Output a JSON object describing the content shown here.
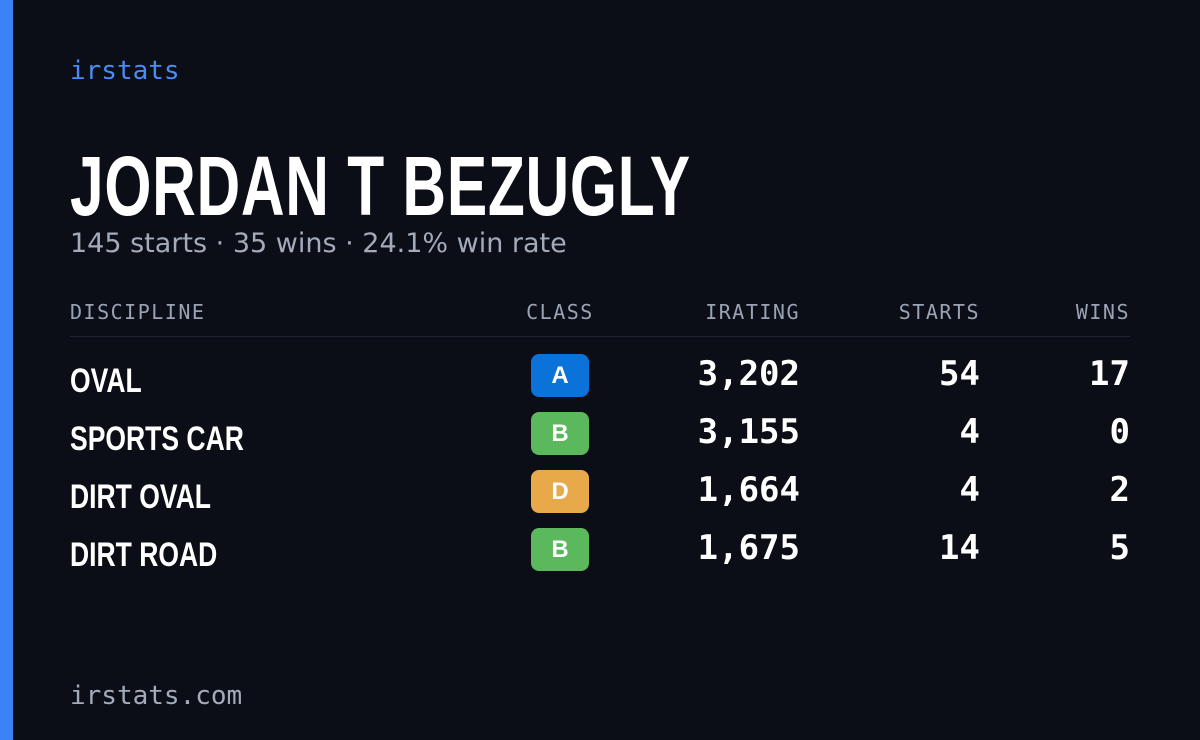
{
  "brand": "irstats",
  "driver": {
    "name": "JORDAN T BEZUGLY",
    "summary": "145 starts · 35 wins · 24.1% win rate"
  },
  "table": {
    "headers": [
      "DISCIPLINE",
      "CLASS",
      "IRATING",
      "STARTS",
      "WINS"
    ],
    "rows": [
      [
        "OVAL",
        "A",
        "3,202",
        54,
        17
      ],
      [
        "SPORTS CAR",
        "B",
        "3,155",
        4,
        0
      ],
      [
        "DIRT OVAL",
        "D",
        "1,664",
        4,
        2
      ],
      [
        "DIRT ROAD",
        "B",
        "1,675",
        14,
        5
      ]
    ]
  },
  "footer": "irstats.com"
}
